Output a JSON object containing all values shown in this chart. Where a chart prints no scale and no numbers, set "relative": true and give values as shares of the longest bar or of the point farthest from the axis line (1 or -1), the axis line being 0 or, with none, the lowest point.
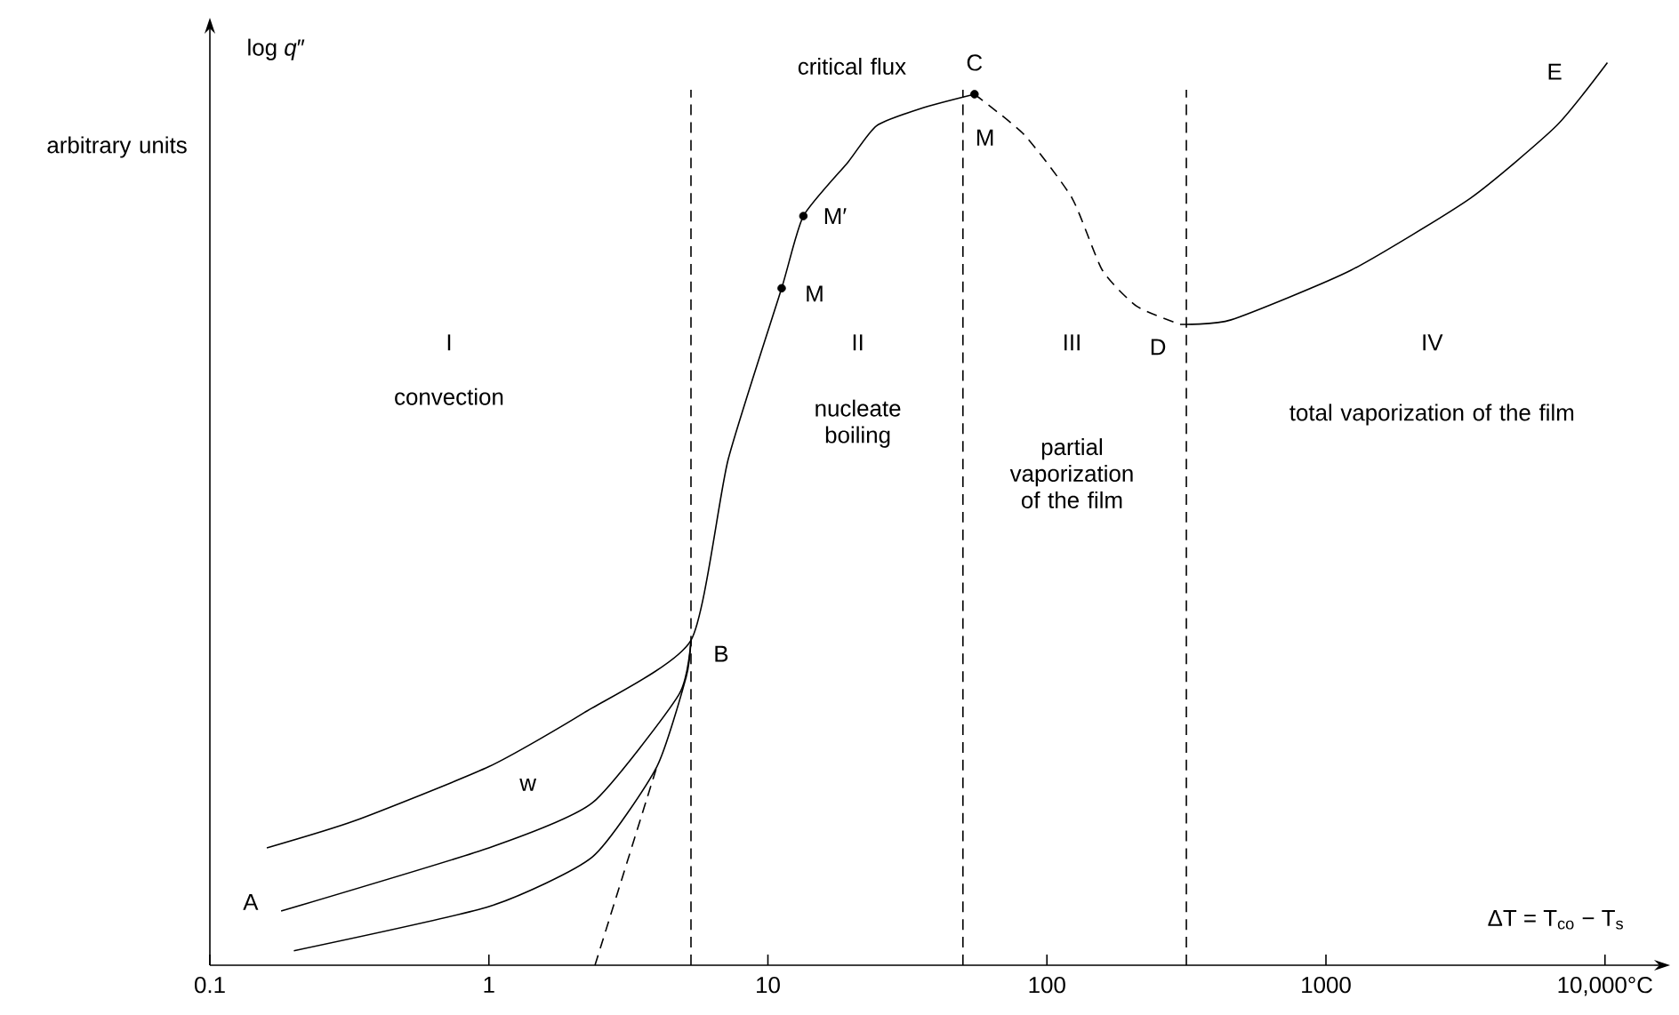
{
  "chart_data": {
    "type": "line",
    "ylabel": "log *q*″",
    "relative": true,
    "log": "x",
    "xlim": [
      0.1,
      15000
    ],
    "xticks": [
      0.1,
      1,
      10,
      100,
      1000,
      {
        "value": 10000,
        "label": "10,000°C"
      }
    ],
    "series": [
      {
        "color": "#000000",
        "line_style": "solid",
        "x": [
          0.16,
          0.33,
          1,
          2.2,
          5.3,
          7.2,
          11.2,
          13.4,
          19.4,
          24.5,
          36,
          55
        ],
        "values": [
          0.13,
          0.16,
          0.22,
          0.28,
          0.36,
          0.56,
          0.75,
          0.83,
          0.89,
          0.93,
          0.95,
          0.965
        ]
      },
      {
        "color": "#000000",
        "line_style": "dashed",
        "x": [
          55,
          83,
          123,
          158,
          210,
          300
        ],
        "values": [
          0.965,
          0.92,
          0.85,
          0.77,
          0.73,
          0.71
        ]
      },
      {
        "color": "#000000",
        "line_style": "solid",
        "x": [
          300,
          457,
          1230,
          3300,
          6700,
          10200
        ],
        "values": [
          0.71,
          0.715,
          0.77,
          0.85,
          0.93,
          1.0
        ]
      },
      {
        "color": "#000000",
        "line_style": "solid",
        "x": [
          0.18,
          1,
          2.35,
          4.8,
          5.3
        ],
        "values": [
          0.06,
          0.13,
          0.18,
          0.3,
          0.36
        ]
      },
      {
        "color": "#000000",
        "line_style": "solid",
        "x": [
          0.2,
          1,
          2.35,
          4.0,
          5.1,
          5.3
        ],
        "values": [
          0.016,
          0.065,
          0.12,
          0.22,
          0.32,
          0.36
        ]
      },
      {
        "color": "#000000",
        "line_style": "dashed",
        "x": [
          2.4,
          4.0
        ],
        "values": [
          0,
          0.22
        ]
      },
      {
        "type": "scatter",
        "marker": "circle",
        "color": "#000000",
        "x": [
          11.2,
          13.4,
          55
        ],
        "values": [
          0.75,
          0.83,
          0.965
        ]
      }
    ],
    "ref_lines": [
      {
        "axis": "x",
        "value": 5.3,
        "line_style": "dashed",
        "color": "#000000"
      },
      {
        "axis": "x",
        "value": 50,
        "line_style": "dashed",
        "color": "#000000"
      },
      {
        "axis": "x",
        "value": 316,
        "line_style": "dashed",
        "color": "#000000"
      }
    ],
    "annotations": [
      "arbitrary units",
      "ΔT = T$_{co}$ − T$_{s}$",
      "A",
      "B",
      "C",
      "D",
      "E",
      "M",
      "M′",
      "M",
      "w",
      "critical flux",
      "I",
      "convection",
      "II",
      "nucleate boiling",
      "III",
      "partial vaporization of the film",
      "IV",
      "total vaporization of the film"
    ]
  }
}
